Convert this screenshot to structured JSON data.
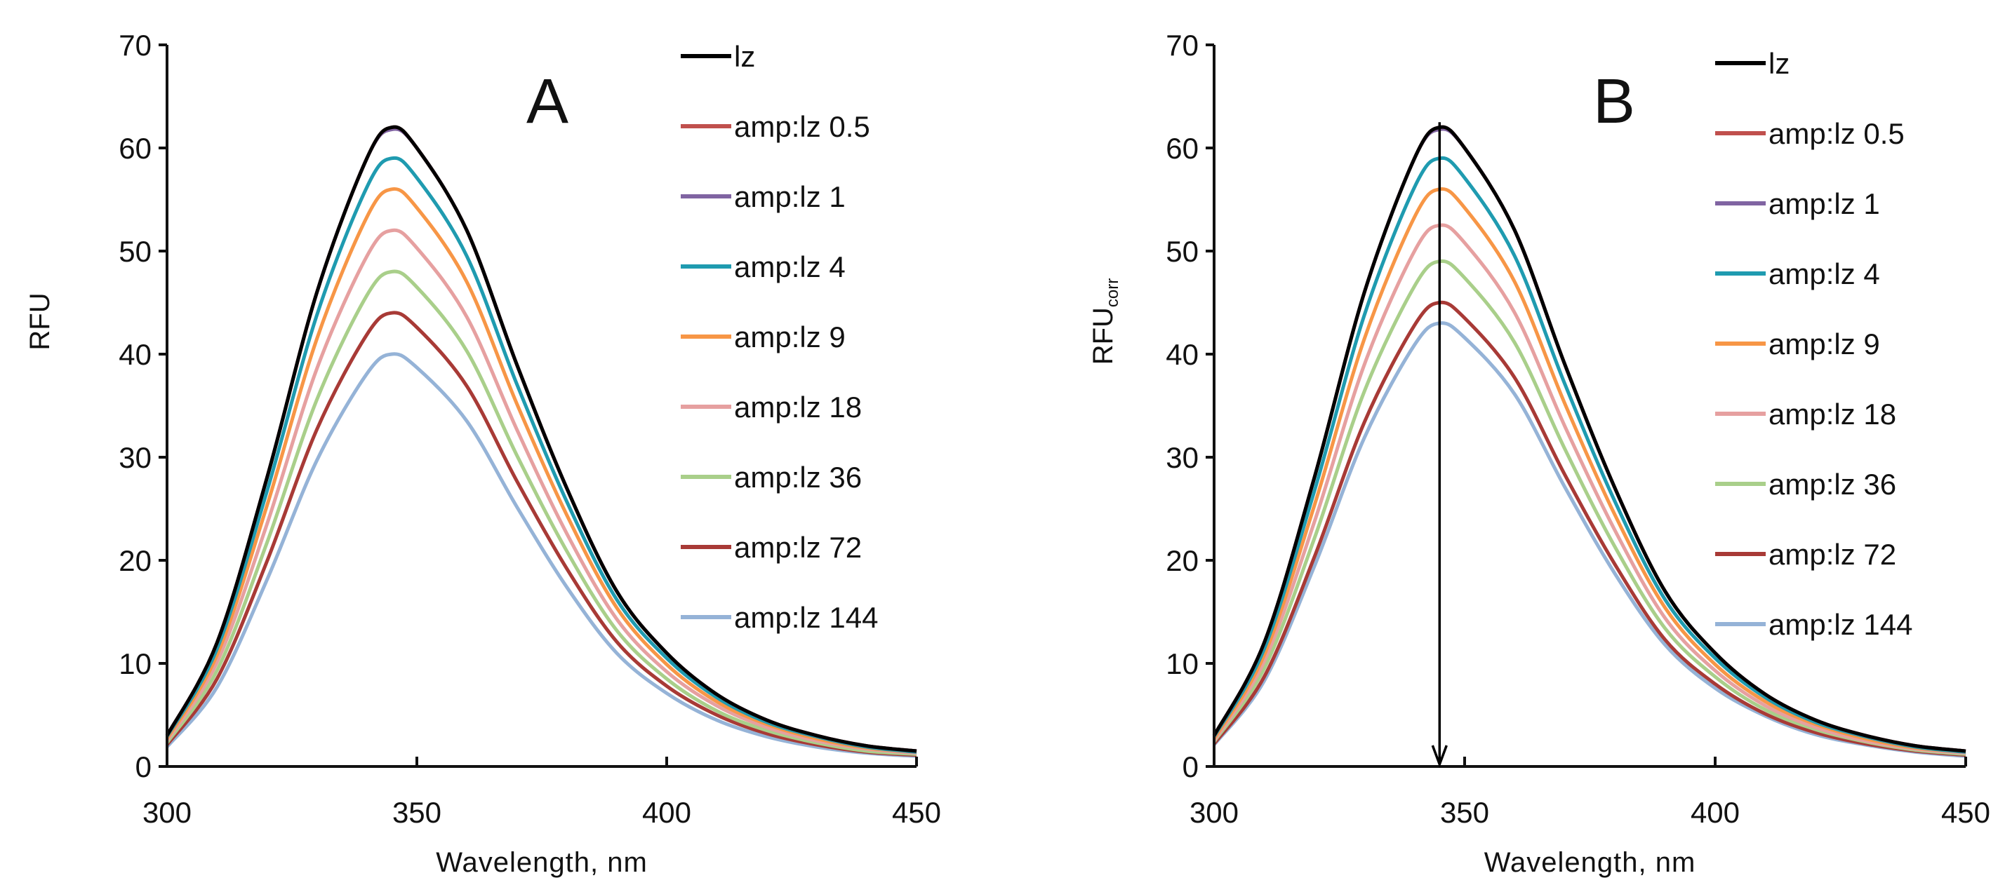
{
  "chart_data": [
    {
      "type": "line",
      "panel_label": "A",
      "xlabel": "Wavelength,  nm",
      "ylabel": "RFU",
      "ylabel_sub": "",
      "xlim": [
        300,
        450
      ],
      "ylim": [
        0,
        70
      ],
      "xticks": [
        "300",
        "350",
        "400",
        "450"
      ],
      "yticks": [
        "0",
        "10",
        "20",
        "30",
        "40",
        "50",
        "60",
        "70"
      ],
      "legend_position": "right",
      "grid": false,
      "arrow_at_nm": null,
      "x": [
        300,
        310,
        320,
        330,
        340,
        345,
        350,
        360,
        370,
        380,
        390,
        400,
        410,
        420,
        430,
        440,
        450
      ],
      "series": [
        {
          "name": "lz",
          "color": "#000000",
          "values": [
            3,
            12,
            28,
            46,
            59,
            62,
            60,
            52,
            39,
            27,
            17,
            11,
            7,
            4.5,
            3,
            2,
            1.5
          ]
        },
        {
          "name": "amp:lz 0.5",
          "color": "#c0504d",
          "values": [
            3,
            12,
            28,
            46,
            59,
            62,
            60,
            52,
            39,
            27,
            17,
            11,
            7,
            4.5,
            3,
            2,
            1.5
          ]
        },
        {
          "name": "amp:lz 1",
          "color": "#8064a2",
          "values": [
            3,
            12,
            28,
            46,
            59,
            61.8,
            60,
            52,
            39,
            27,
            17,
            11,
            7,
            4.5,
            3,
            2,
            1.5
          ]
        },
        {
          "name": "amp:lz 4",
          "color": "#1f9bb0",
          "values": [
            2.9,
            11.4,
            26.7,
            43.8,
            56.2,
            59,
            57.1,
            49.5,
            37.1,
            25.7,
            16.2,
            10.5,
            6.7,
            4.3,
            2.9,
            1.9,
            1.4
          ]
        },
        {
          "name": "amp:lz 9",
          "color": "#f79646",
          "values": [
            2.7,
            10.8,
            25.3,
            41.5,
            53.3,
            56,
            54.2,
            47,
            35.2,
            24.4,
            15.4,
            9.9,
            6.3,
            4.1,
            2.7,
            1.8,
            1.4
          ]
        },
        {
          "name": "amp:lz 18",
          "color": "#e6a0a0",
          "values": [
            2.5,
            10.1,
            23.5,
            38.6,
            49.5,
            52,
            50.3,
            43.6,
            32.7,
            22.6,
            14.3,
            9.2,
            5.9,
            3.8,
            2.5,
            1.7,
            1.3
          ]
        },
        {
          "name": "amp:lz 36",
          "color": "#a9cf8a",
          "values": [
            2.3,
            9.3,
            21.7,
            35.6,
            45.7,
            48,
            46.5,
            40.3,
            30.2,
            20.9,
            13.2,
            8.5,
            5.4,
            3.5,
            2.3,
            1.5,
            1.2
          ]
        },
        {
          "name": "amp:lz 72",
          "color": "#a83a36",
          "values": [
            2.1,
            8.5,
            19.9,
            32.7,
            41.9,
            44,
            42.6,
            36.9,
            27.7,
            19.2,
            12.1,
            7.8,
            5,
            3.2,
            2.1,
            1.4,
            1.1
          ]
        },
        {
          "name": "amp:lz 144",
          "color": "#95b3d7",
          "values": [
            1.9,
            7.7,
            18.1,
            29.7,
            38.1,
            40,
            38.7,
            33.5,
            25.2,
            17.4,
            11,
            7.1,
            4.5,
            2.9,
            1.9,
            1.3,
            1
          ]
        }
      ]
    },
    {
      "type": "line",
      "panel_label": "B",
      "xlabel": "Wavelength,  nm",
      "ylabel": "RFU",
      "ylabel_sub": "corr",
      "xlim": [
        300,
        450
      ],
      "ylim": [
        0,
        70
      ],
      "xticks": [
        "300",
        "350",
        "400",
        "450"
      ],
      "yticks": [
        "0",
        "10",
        "20",
        "30",
        "40",
        "50",
        "60",
        "70"
      ],
      "legend_position": "right",
      "grid": false,
      "arrow_at_nm": 345,
      "x": [
        300,
        310,
        320,
        330,
        340,
        345,
        350,
        360,
        370,
        380,
        390,
        400,
        410,
        420,
        430,
        440,
        450
      ],
      "series": [
        {
          "name": "lz",
          "color": "#000000",
          "values": [
            3,
            12,
            28,
            46,
            59,
            62,
            60,
            52,
            39,
            27,
            17,
            11,
            7,
            4.5,
            3,
            2,
            1.5
          ]
        },
        {
          "name": "amp:lz 0.5",
          "color": "#c0504d",
          "values": [
            3,
            12,
            28,
            46,
            59,
            62,
            60,
            52,
            39,
            27,
            17,
            11,
            7,
            4.5,
            3,
            2,
            1.5
          ]
        },
        {
          "name": "amp:lz 1",
          "color": "#8064a2",
          "values": [
            3,
            12,
            28,
            46,
            59,
            61.8,
            60,
            52,
            39,
            27,
            17,
            11,
            7,
            4.5,
            3,
            2,
            1.5
          ]
        },
        {
          "name": "amp:lz 4",
          "color": "#1f9bb0",
          "values": [
            2.9,
            11.4,
            26.7,
            43.8,
            56.2,
            59,
            57.1,
            49.5,
            37.1,
            25.7,
            16.2,
            10.5,
            6.7,
            4.3,
            2.9,
            1.9,
            1.4
          ]
        },
        {
          "name": "amp:lz 9",
          "color": "#f79646",
          "values": [
            2.7,
            10.8,
            25.3,
            41.5,
            53.3,
            56,
            54.2,
            47,
            35.2,
            24.4,
            15.4,
            9.9,
            6.3,
            4.1,
            2.7,
            1.8,
            1.4
          ]
        },
        {
          "name": "amp:lz 18",
          "color": "#e6a0a0",
          "values": [
            2.5,
            10.2,
            23.7,
            39,
            50,
            52.5,
            50.8,
            44,
            33,
            22.9,
            14.4,
            9.3,
            5.9,
            3.8,
            2.5,
            1.7,
            1.3
          ]
        },
        {
          "name": "amp:lz 36",
          "color": "#a9cf8a",
          "values": [
            2.4,
            9.5,
            22.1,
            36.4,
            46.6,
            49,
            47.4,
            41.1,
            30.8,
            21.3,
            13.4,
            8.7,
            5.5,
            3.6,
            2.4,
            1.6,
            1.2
          ]
        },
        {
          "name": "amp:lz 72",
          "color": "#a83a36",
          "values": [
            2.2,
            8.7,
            20.3,
            33.4,
            42.8,
            45,
            43.5,
            37.7,
            28.3,
            19.6,
            12.3,
            8,
            5.1,
            3.3,
            2.2,
            1.5,
            1.1
          ]
        },
        {
          "name": "amp:lz 144",
          "color": "#95b3d7",
          "values": [
            2.1,
            8.3,
            19.4,
            31.9,
            40.9,
            43,
            41.6,
            36.1,
            27.1,
            18.7,
            11.8,
            7.6,
            4.9,
            3.1,
            2.1,
            1.4,
            1
          ]
        }
      ]
    }
  ]
}
